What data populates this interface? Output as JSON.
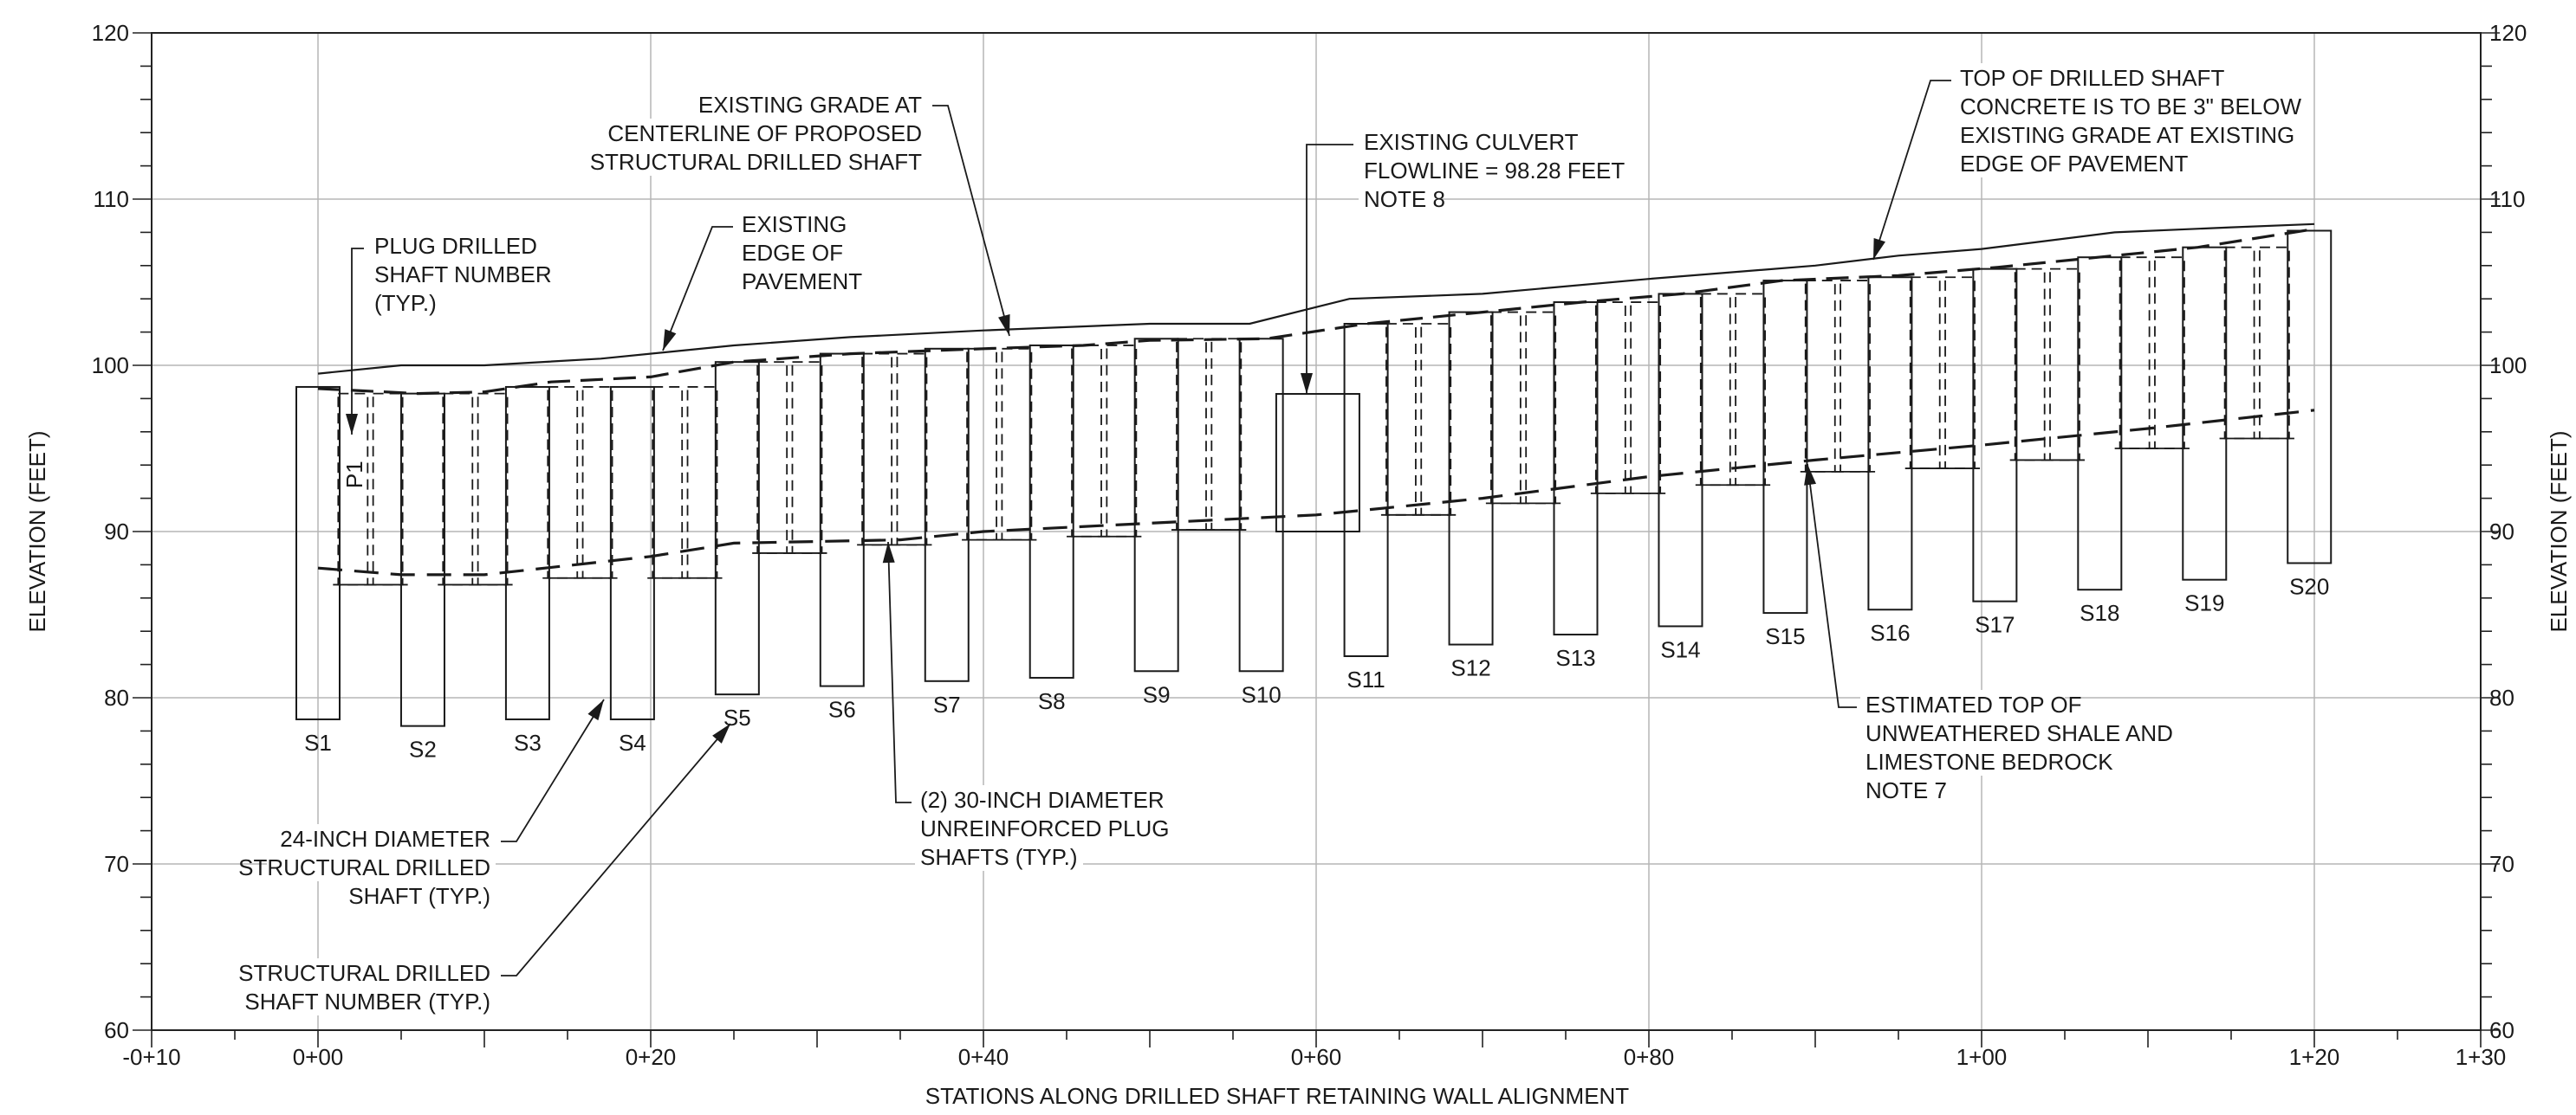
{
  "chart_data": {
    "type": "diagram",
    "x_axis": {
      "label": "STATIONS ALONG DRILLED SHAFT RETAINING WALL ALIGNMENT",
      "range": [
        -10,
        130
      ],
      "ticks": [
        {
          "value": -10,
          "label": "-0+10"
        },
        {
          "value": 0,
          "label": "0+00"
        },
        {
          "value": 20,
          "label": "0+20"
        },
        {
          "value": 40,
          "label": "0+40"
        },
        {
          "value": 60,
          "label": "0+60"
        },
        {
          "value": 80,
          "label": "0+80"
        },
        {
          "value": 100,
          "label": "1+00"
        },
        {
          "value": 120,
          "label": "1+20"
        },
        {
          "value": 130,
          "label": "1+30"
        }
      ]
    },
    "y_axis": {
      "label": "ELEVATION (FEET)",
      "range": [
        60,
        120
      ],
      "ticks": [
        60,
        70,
        80,
        90,
        100,
        110,
        120
      ]
    },
    "grid": true,
    "structural_shafts": [
      {
        "name": "S1",
        "station": 0.0,
        "top": 98.7,
        "bottom": 78.7
      },
      {
        "name": "S2",
        "station": 6.3,
        "top": 98.3,
        "bottom": 78.3
      },
      {
        "name": "S3",
        "station": 12.6,
        "top": 98.7,
        "bottom": 78.7
      },
      {
        "name": "S4",
        "station": 18.9,
        "top": 98.7,
        "bottom": 78.7
      },
      {
        "name": "S5",
        "station": 25.2,
        "top": 100.2,
        "bottom": 80.2
      },
      {
        "name": "S6",
        "station": 31.5,
        "top": 100.7,
        "bottom": 80.7
      },
      {
        "name": "S7",
        "station": 37.8,
        "top": 101.0,
        "bottom": 81.0
      },
      {
        "name": "S8",
        "station": 44.1,
        "top": 101.2,
        "bottom": 81.2
      },
      {
        "name": "S9",
        "station": 50.4,
        "top": 101.6,
        "bottom": 81.6
      },
      {
        "name": "S10",
        "station": 56.7,
        "top": 101.6,
        "bottom": 81.6
      },
      {
        "name": "S11",
        "station": 63.0,
        "top": 102.5,
        "bottom": 82.5
      },
      {
        "name": "S12",
        "station": 69.3,
        "top": 103.2,
        "bottom": 83.2
      },
      {
        "name": "S13",
        "station": 75.6,
        "top": 103.8,
        "bottom": 83.8
      },
      {
        "name": "S14",
        "station": 81.9,
        "top": 104.3,
        "bottom": 84.3
      },
      {
        "name": "S15",
        "station": 88.2,
        "top": 105.1,
        "bottom": 85.1
      },
      {
        "name": "S16",
        "station": 94.5,
        "top": 105.3,
        "bottom": 85.3
      },
      {
        "name": "S17",
        "station": 100.8,
        "top": 105.8,
        "bottom": 85.8
      },
      {
        "name": "S18",
        "station": 107.1,
        "top": 106.5,
        "bottom": 86.5
      },
      {
        "name": "S19",
        "station": 113.4,
        "top": 107.1,
        "bottom": 87.1
      },
      {
        "name": "S20",
        "station": 119.7,
        "top": 108.1,
        "bottom": 88.1
      }
    ],
    "plug_shafts": [
      {
        "station": 2.1,
        "top": 98.3,
        "bottom": 86.8
      },
      {
        "station": 4.2,
        "top": 98.3,
        "bottom": 86.8
      },
      {
        "station": 8.4,
        "top": 98.3,
        "bottom": 86.8
      },
      {
        "station": 10.5,
        "top": 98.3,
        "bottom": 86.8
      },
      {
        "station": 14.7,
        "top": 98.7,
        "bottom": 87.2
      },
      {
        "station": 16.8,
        "top": 98.7,
        "bottom": 87.2
      },
      {
        "station": 21.0,
        "top": 98.7,
        "bottom": 87.2
      },
      {
        "station": 23.1,
        "top": 98.7,
        "bottom": 87.2
      },
      {
        "station": 27.3,
        "top": 100.2,
        "bottom": 88.7
      },
      {
        "station": 29.4,
        "top": 100.2,
        "bottom": 88.7
      },
      {
        "station": 33.6,
        "top": 100.7,
        "bottom": 89.2
      },
      {
        "station": 35.7,
        "top": 100.7,
        "bottom": 89.2
      },
      {
        "station": 39.9,
        "top": 101.0,
        "bottom": 89.5
      },
      {
        "station": 42.0,
        "top": 101.0,
        "bottom": 89.5
      },
      {
        "station": 46.2,
        "top": 101.2,
        "bottom": 89.7
      },
      {
        "station": 48.3,
        "top": 101.2,
        "bottom": 89.7
      },
      {
        "station": 52.5,
        "top": 101.6,
        "bottom": 90.1
      },
      {
        "station": 54.6,
        "top": 101.6,
        "bottom": 90.1
      },
      {
        "station": 65.1,
        "top": 102.5,
        "bottom": 91.0
      },
      {
        "station": 67.2,
        "top": 102.5,
        "bottom": 91.0
      },
      {
        "station": 71.4,
        "top": 103.2,
        "bottom": 91.7
      },
      {
        "station": 73.5,
        "top": 103.2,
        "bottom": 91.7
      },
      {
        "station": 77.7,
        "top": 103.8,
        "bottom": 92.3
      },
      {
        "station": 79.8,
        "top": 103.8,
        "bottom": 92.3
      },
      {
        "station": 84.0,
        "top": 104.3,
        "bottom": 92.8
      },
      {
        "station": 86.1,
        "top": 104.3,
        "bottom": 92.8
      },
      {
        "station": 90.3,
        "top": 105.1,
        "bottom": 93.6
      },
      {
        "station": 92.4,
        "top": 105.1,
        "bottom": 93.6
      },
      {
        "station": 96.6,
        "top": 105.3,
        "bottom": 93.8
      },
      {
        "station": 98.7,
        "top": 105.3,
        "bottom": 93.8
      },
      {
        "station": 102.9,
        "top": 105.8,
        "bottom": 94.3
      },
      {
        "station": 105.0,
        "top": 105.8,
        "bottom": 94.3
      },
      {
        "station": 109.2,
        "top": 106.5,
        "bottom": 95.0
      },
      {
        "station": 111.3,
        "top": 106.5,
        "bottom": 95.0
      },
      {
        "station": 115.5,
        "top": 107.1,
        "bottom": 95.6
      },
      {
        "station": 117.6,
        "top": 107.1,
        "bottom": 95.6
      }
    ],
    "culvert": {
      "station": 60.1,
      "flowline": 98.28,
      "bottom": 90.0
    },
    "existing_edge_of_pavement": [
      [
        0,
        99.5
      ],
      [
        5,
        100.0
      ],
      [
        10,
        100.0
      ],
      [
        17,
        100.4
      ],
      [
        25,
        101.2
      ],
      [
        32,
        101.7
      ],
      [
        40,
        102.1
      ],
      [
        50,
        102.5
      ],
      [
        56,
        102.5
      ],
      [
        62,
        104.0
      ],
      [
        70,
        104.3
      ],
      [
        80,
        105.2
      ],
      [
        90,
        106.0
      ],
      [
        95,
        106.6
      ],
      [
        100,
        107.0
      ],
      [
        108,
        108.0
      ],
      [
        115,
        108.3
      ],
      [
        120,
        108.5
      ]
    ],
    "existing_grade_centerline": [
      [
        0,
        98.6
      ],
      [
        6,
        98.3
      ],
      [
        10,
        98.4
      ],
      [
        14,
        99.0
      ],
      [
        20,
        99.3
      ],
      [
        25,
        100.2
      ],
      [
        32,
        100.7
      ],
      [
        40,
        101.0
      ],
      [
        46,
        101.2
      ],
      [
        50,
        101.5
      ],
      [
        57,
        101.6
      ],
      [
        63,
        102.5
      ],
      [
        70,
        103.2
      ],
      [
        76,
        103.8
      ],
      [
        82,
        104.3
      ],
      [
        88,
        105.1
      ],
      [
        95,
        105.4
      ],
      [
        101,
        105.9
      ],
      [
        107,
        106.5
      ],
      [
        113,
        107.1
      ],
      [
        120,
        108.2
      ]
    ],
    "top_of_bedrock": [
      [
        0,
        87.8
      ],
      [
        5,
        87.4
      ],
      [
        10,
        87.4
      ],
      [
        20,
        88.5
      ],
      [
        25,
        89.3
      ],
      [
        35,
        89.5
      ],
      [
        40,
        90.0
      ],
      [
        50,
        90.5
      ],
      [
        60,
        91.0
      ],
      [
        70,
        92.0
      ],
      [
        80,
        93.3
      ],
      [
        90,
        94.3
      ],
      [
        100,
        95.2
      ],
      [
        110,
        96.2
      ],
      [
        120,
        97.3
      ]
    ],
    "plug_label": "P1",
    "annotations": [
      {
        "id": "plug",
        "lines": [
          "PLUG DRILLED",
          "SHAFT NUMBER",
          "(TYP.)"
        ]
      },
      {
        "id": "edge",
        "lines": [
          "EXISTING",
          "EDGE OF",
          "PAVEMENT"
        ]
      },
      {
        "id": "grade",
        "lines": [
          "EXISTING GRADE AT",
          "CENTERLINE OF PROPOSED",
          "STRUCTURAL DRILLED SHAFT"
        ]
      },
      {
        "id": "culvert",
        "lines": [
          "EXISTING CULVERT",
          "FLOWLINE = 98.28 FEET",
          "NOTE 8"
        ]
      },
      {
        "id": "top-concrete",
        "lines": [
          "TOP OF DRILLED SHAFT",
          "CONCRETE IS TO BE 3\" BELOW",
          "EXISTING GRADE AT EXISTING",
          "EDGE OF PAVEMENT"
        ]
      },
      {
        "id": "bedrock",
        "lines": [
          "ESTIMATED TOP OF",
          "UNWEATHERED SHALE AND",
          "LIMESTONE BEDROCK",
          "NOTE 7"
        ]
      },
      {
        "id": "structural",
        "lines": [
          "24-INCH DIAMETER",
          "STRUCTURAL DRILLED",
          "SHAFT (TYP.)"
        ]
      },
      {
        "id": "shaft-number",
        "lines": [
          "STRUCTURAL DRILLED",
          "SHAFT NUMBER (TYP.)"
        ]
      },
      {
        "id": "plug-shafts",
        "lines": [
          "(2) 30-INCH DIAMETER",
          "UNREINFORCED PLUG",
          "SHAFTS (TYP.)"
        ]
      }
    ]
  }
}
